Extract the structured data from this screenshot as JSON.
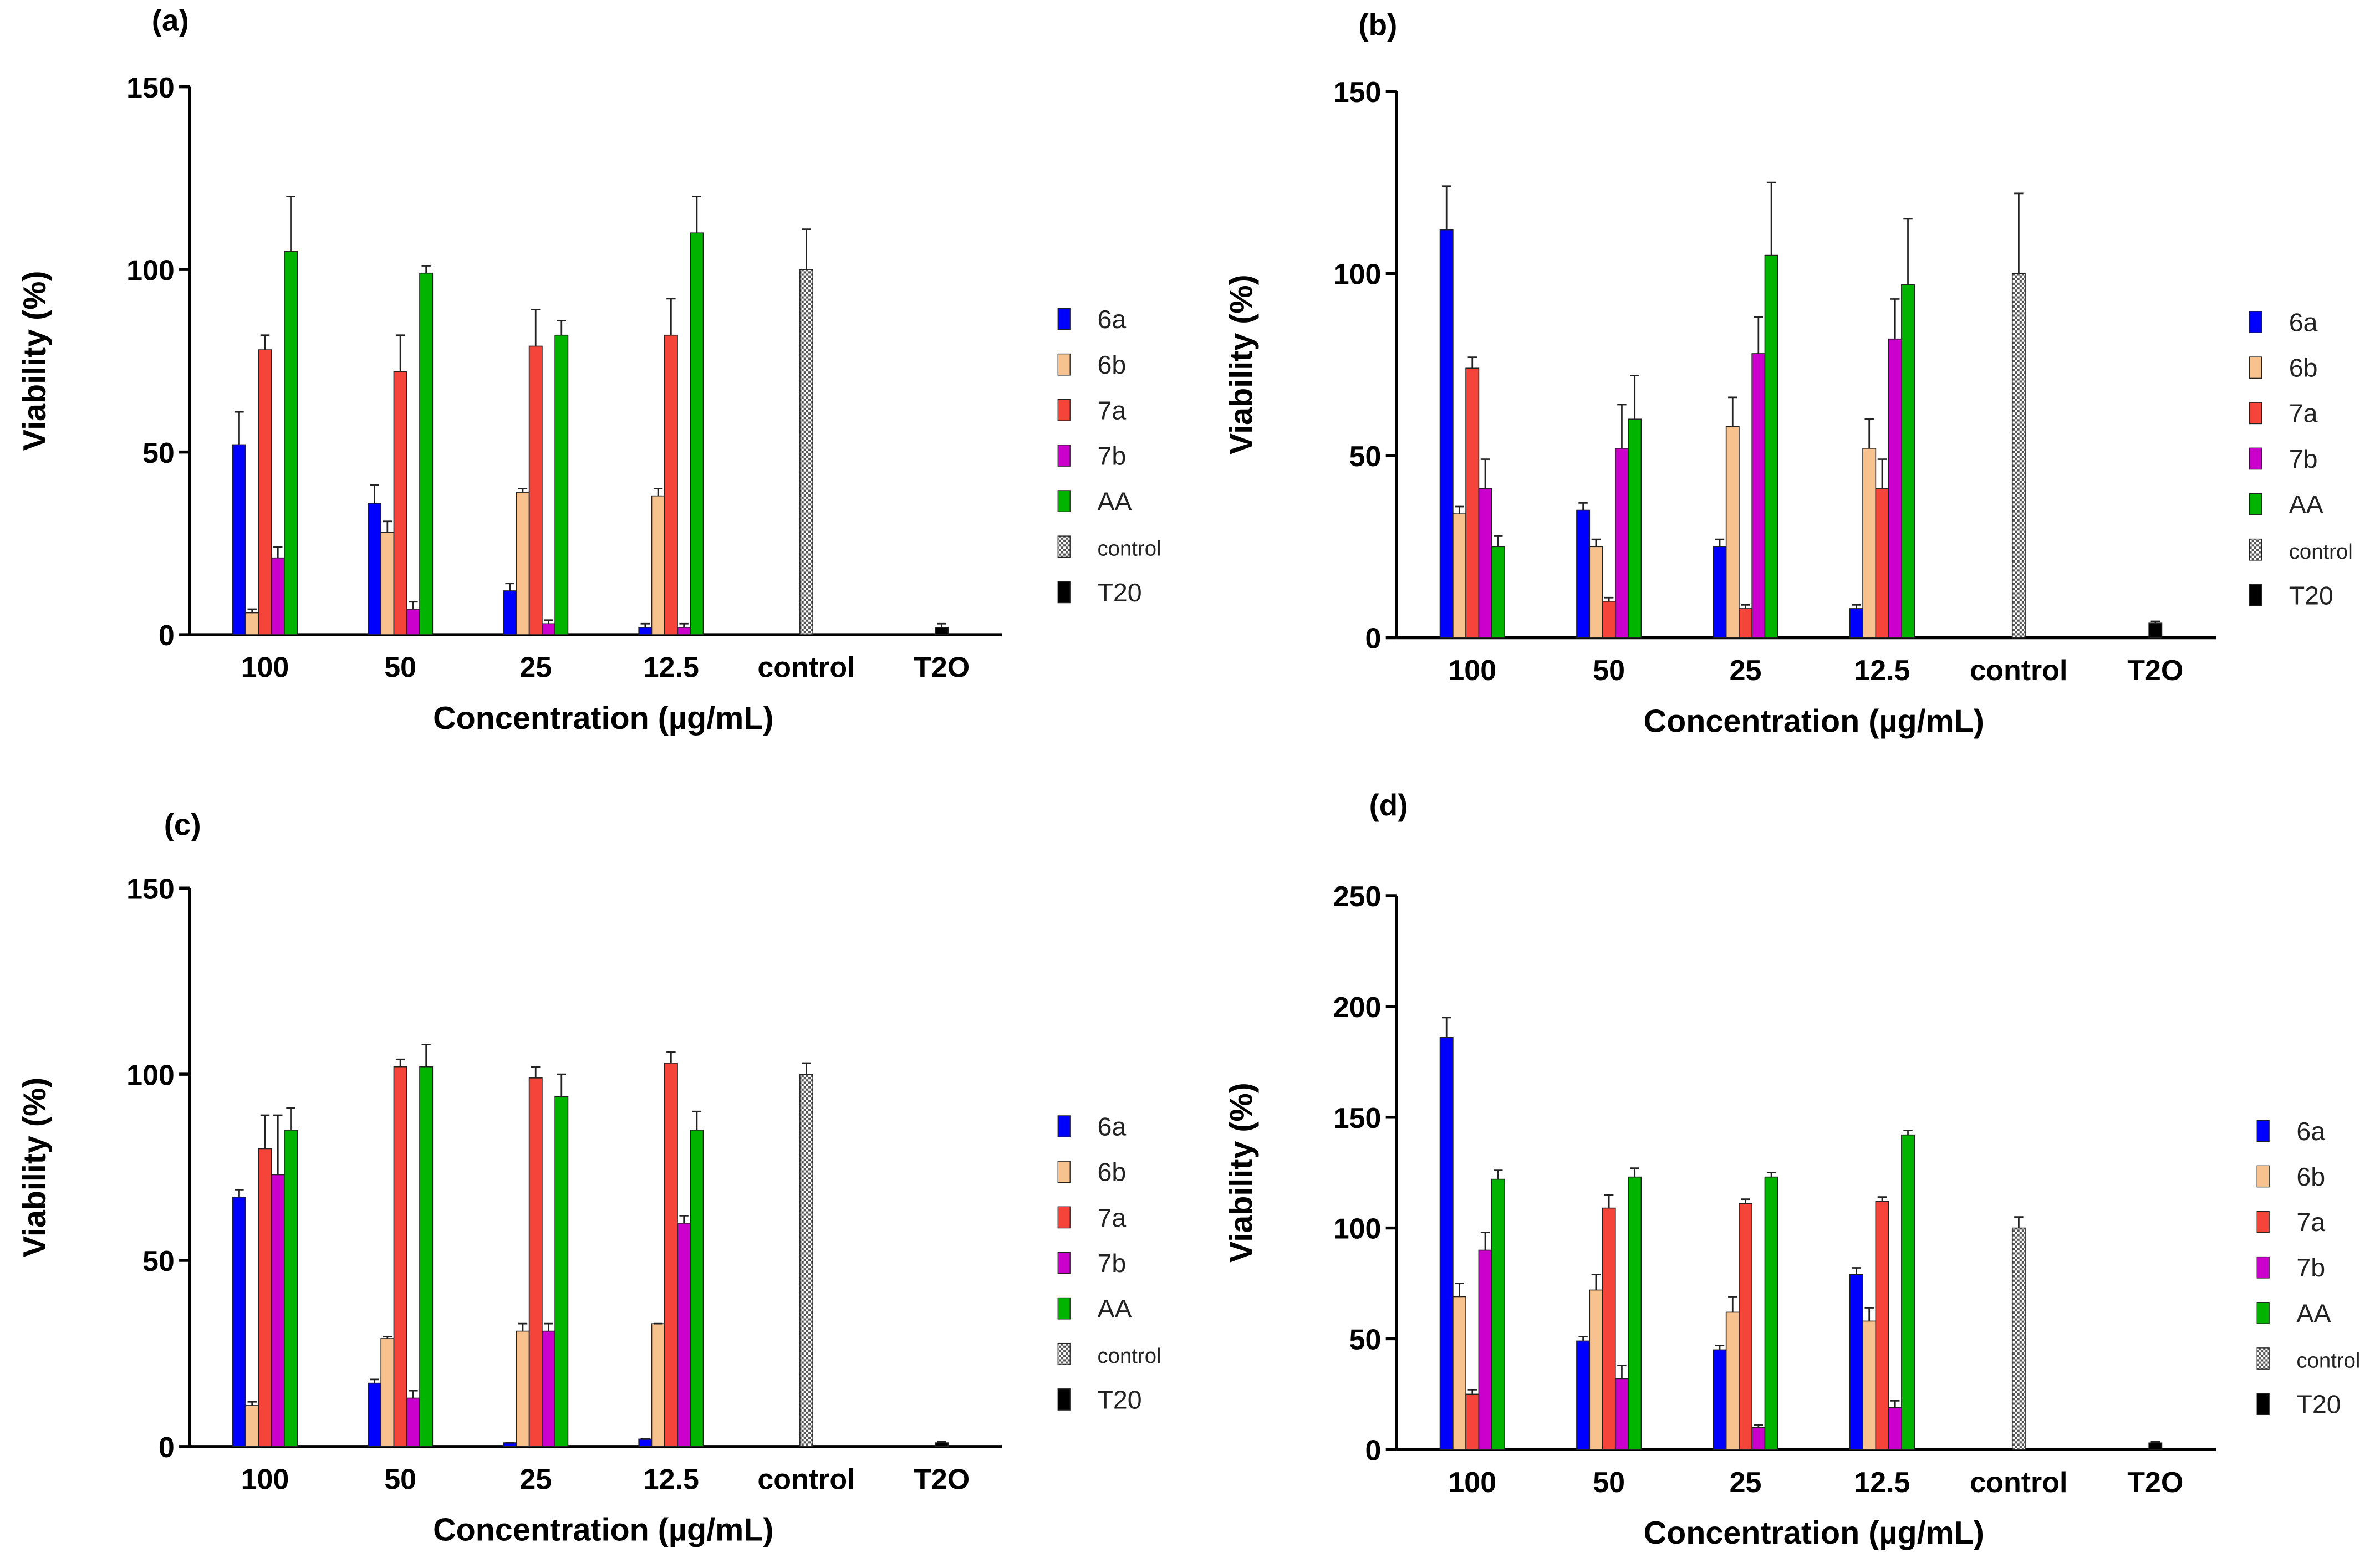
{
  "chart_data": [
    {
      "type": "bar",
      "panel": "(a)",
      "xlabel": "Concentration (µg/mL)",
      "ylabel": "Viability (%)",
      "categories": [
        "100",
        "50",
        "25",
        "12.5",
        "control",
        "T2O"
      ],
      "ylim": [
        0,
        150
      ],
      "yticks": [
        0,
        50,
        100,
        150
      ],
      "series": [
        {
          "name": "6a",
          "color": "#0000ff",
          "values": [
            52,
            36,
            12,
            2,
            null,
            null
          ],
          "errors": [
            9,
            5,
            2,
            1,
            null,
            null
          ]
        },
        {
          "name": "6b",
          "color": "#f7c28e",
          "values": [
            6,
            28,
            39,
            38,
            null,
            null
          ],
          "errors": [
            1,
            3,
            1,
            2,
            null,
            null
          ]
        },
        {
          "name": "7a",
          "color": "#f5453a",
          "values": [
            78,
            72,
            79,
            82,
            null,
            null
          ],
          "errors": [
            4,
            10,
            10,
            10,
            null,
            null
          ]
        },
        {
          "name": "7b",
          "color": "#cc00cc",
          "values": [
            21,
            7,
            3,
            2,
            null,
            null
          ],
          "errors": [
            3,
            2,
            1,
            1,
            null,
            null
          ]
        },
        {
          "name": "AA",
          "color": "#00b400",
          "values": [
            105,
            99,
            82,
            110,
            null,
            null
          ],
          "errors": [
            15,
            2,
            4,
            10,
            null,
            null
          ]
        },
        {
          "name": "control",
          "color": "#bbbbbb",
          "hatch": true,
          "values": [
            null,
            null,
            null,
            null,
            100,
            null
          ],
          "errors": [
            null,
            null,
            null,
            null,
            11,
            null
          ]
        },
        {
          "name": "T20",
          "color": "#000000",
          "values": [
            null,
            null,
            null,
            null,
            null,
            2
          ],
          "errors": [
            null,
            null,
            null,
            null,
            null,
            1
          ]
        }
      ]
    },
    {
      "type": "bar",
      "panel": "(b)",
      "xlabel": "Concentration (µg/mL)",
      "ylabel": "Viability (%)",
      "categories": [
        "100",
        "50",
        "25",
        "12.5",
        "control",
        "T2O"
      ],
      "ylim": [
        0,
        150
      ],
      "yticks": [
        0,
        50,
        100,
        150
      ],
      "series": [
        {
          "name": "6a",
          "color": "#0000ff",
          "values": [
            112,
            35,
            25,
            8,
            null,
            null
          ],
          "errors": [
            12,
            2,
            2,
            1,
            null,
            null
          ]
        },
        {
          "name": "6b",
          "color": "#f7c28e",
          "values": [
            34,
            25,
            58,
            52,
            null,
            null
          ],
          "errors": [
            2,
            2,
            8,
            8,
            null,
            null
          ]
        },
        {
          "name": "7a",
          "color": "#f5453a",
          "values": [
            74,
            10,
            8,
            41,
            null,
            null
          ],
          "errors": [
            3,
            1,
            1,
            8,
            null,
            null
          ]
        },
        {
          "name": "7b",
          "color": "#cc00cc",
          "values": [
            41,
            52,
            78,
            82,
            null,
            null
          ],
          "errors": [
            8,
            12,
            10,
            11,
            null,
            null
          ]
        },
        {
          "name": "AA",
          "color": "#00b400",
          "values": [
            25,
            60,
            105,
            97,
            null,
            null
          ],
          "errors": [
            3,
            12,
            20,
            18,
            null,
            null
          ]
        },
        {
          "name": "control",
          "color": "#bbbbbb",
          "hatch": true,
          "values": [
            null,
            null,
            null,
            null,
            100,
            null
          ],
          "errors": [
            null,
            null,
            null,
            null,
            22,
            null
          ]
        },
        {
          "name": "T20",
          "color": "#000000",
          "values": [
            null,
            null,
            null,
            null,
            null,
            4
          ],
          "errors": [
            null,
            null,
            null,
            null,
            null,
            0.5
          ]
        }
      ]
    },
    {
      "type": "bar",
      "panel": "(c)",
      "xlabel": "Concentration (µg/mL)",
      "ylabel": "Viability (%)",
      "categories": [
        "100",
        "50",
        "25",
        "12.5",
        "control",
        "T2O"
      ],
      "ylim": [
        0,
        150
      ],
      "yticks": [
        0,
        50,
        100,
        150
      ],
      "series": [
        {
          "name": "6a",
          "color": "#0000ff",
          "values": [
            67,
            17,
            1,
            2,
            null,
            null
          ],
          "errors": [
            2,
            1,
            0,
            0,
            null,
            null
          ]
        },
        {
          "name": "6b",
          "color": "#f7c28e",
          "values": [
            11,
            29,
            31,
            33,
            null,
            null
          ],
          "errors": [
            1,
            0.5,
            2,
            0,
            null,
            null
          ]
        },
        {
          "name": "7a",
          "color": "#f5453a",
          "values": [
            80,
            102,
            99,
            103,
            null,
            null
          ],
          "errors": [
            9,
            2,
            3,
            3,
            null,
            null
          ]
        },
        {
          "name": "7b",
          "color": "#cc00cc",
          "values": [
            73,
            13,
            31,
            60,
            null,
            null
          ],
          "errors": [
            16,
            2,
            2,
            2,
            null,
            null
          ]
        },
        {
          "name": "AA",
          "color": "#00b400",
          "values": [
            85,
            102,
            94,
            85,
            null,
            null
          ],
          "errors": [
            6,
            6,
            6,
            5,
            null,
            null
          ]
        },
        {
          "name": "control",
          "color": "#bbbbbb",
          "hatch": true,
          "values": [
            null,
            null,
            null,
            null,
            100,
            null
          ],
          "errors": [
            null,
            null,
            null,
            null,
            3,
            null
          ]
        },
        {
          "name": "T20",
          "color": "#000000",
          "values": [
            null,
            null,
            null,
            null,
            null,
            1
          ],
          "errors": [
            null,
            null,
            null,
            null,
            null,
            0.3
          ]
        }
      ]
    },
    {
      "type": "bar",
      "panel": "(d)",
      "xlabel": "Concentration (µg/mL)",
      "ylabel": "Viability (%)",
      "categories": [
        "100",
        "50",
        "25",
        "12.5",
        "control",
        "T2O"
      ],
      "ylim": [
        0,
        250
      ],
      "yticks": [
        0,
        50,
        100,
        150,
        200,
        250
      ],
      "series": [
        {
          "name": "6a",
          "color": "#0000ff",
          "values": [
            186,
            49,
            45,
            79,
            null,
            null
          ],
          "errors": [
            9,
            2,
            2,
            3,
            null,
            null
          ]
        },
        {
          "name": "6b",
          "color": "#f7c28e",
          "values": [
            69,
            72,
            62,
            58,
            null,
            null
          ],
          "errors": [
            6,
            7,
            7,
            6,
            null,
            null
          ]
        },
        {
          "name": "7a",
          "color": "#f5453a",
          "values": [
            25,
            109,
            111,
            112,
            null,
            null
          ],
          "errors": [
            2,
            6,
            2,
            2,
            null,
            null
          ]
        },
        {
          "name": "7b",
          "color": "#cc00cc",
          "values": [
            90,
            32,
            10,
            19,
            null,
            null
          ],
          "errors": [
            8,
            6,
            1,
            3,
            null,
            null
          ]
        },
        {
          "name": "AA",
          "color": "#00b400",
          "values": [
            122,
            123,
            123,
            142,
            null,
            null
          ],
          "errors": [
            4,
            4,
            2,
            2,
            null,
            null
          ]
        },
        {
          "name": "control",
          "color": "#bbbbbb",
          "hatch": true,
          "values": [
            null,
            null,
            null,
            null,
            100,
            null
          ],
          "errors": [
            null,
            null,
            null,
            null,
            5,
            null
          ]
        },
        {
          "name": "T20",
          "color": "#000000",
          "values": [
            null,
            null,
            null,
            null,
            null,
            3
          ],
          "errors": [
            null,
            null,
            null,
            null,
            null,
            0.5
          ]
        }
      ]
    }
  ]
}
